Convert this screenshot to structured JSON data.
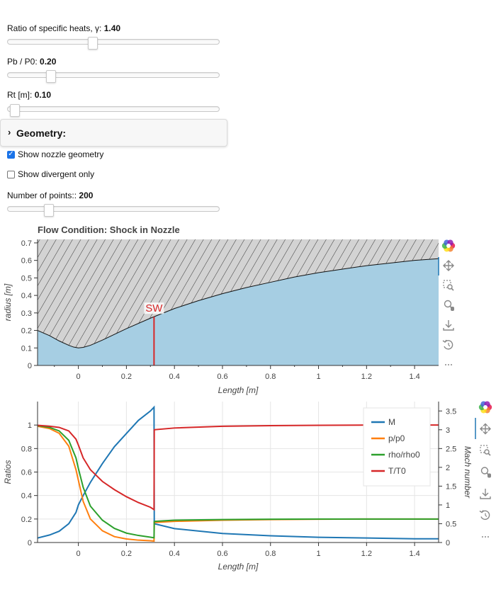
{
  "controls": {
    "gamma": {
      "label": "Ratio of specific heats, γ:",
      "value": "1.40",
      "fraction": 0.4
    },
    "pb": {
      "label": "Pb / P0:",
      "value": "0.20",
      "fraction": 0.2
    },
    "rt": {
      "label": "Rt [m]:",
      "value": "0.10",
      "fraction": 0.03
    },
    "geometry_panel": {
      "title": "Geometry:"
    },
    "show_geometry": {
      "label": "Show nozzle geometry",
      "checked": true
    },
    "show_divergent": {
      "label": "Show divergent only",
      "checked": false
    },
    "npoints": {
      "label": "Number of points::",
      "value": "200",
      "fraction": 0.19
    }
  },
  "toolbar": {
    "icons": [
      "bokeh-logo-icon",
      "pan-icon",
      "box-zoom-icon",
      "wheel-zoom-icon",
      "save-icon",
      "reset-icon",
      "more-icon"
    ]
  },
  "chart_data": [
    {
      "type": "area",
      "title": "Flow Condition: Shock in Nozzle",
      "xlabel": "Length [m]",
      "ylabel": "radius [m]",
      "xlim": [
        -0.17,
        1.5
      ],
      "ylim": [
        0,
        0.72
      ],
      "xticks": [
        "0",
        "0.2",
        "0.4",
        "0.6",
        "0.8",
        "1",
        "1.2",
        "1.4"
      ],
      "xtick_values": [
        0,
        0.2,
        0.4,
        0.6,
        0.8,
        1.0,
        1.2,
        1.4
      ],
      "yticks": [
        "0",
        "0.1",
        "0.2",
        "0.3",
        "0.4",
        "0.5",
        "0.6",
        "0.7"
      ],
      "ytick_values": [
        0,
        0.1,
        0.2,
        0.3,
        0.4,
        0.5,
        0.6,
        0.7
      ],
      "grid": false,
      "wall": {
        "x": [
          -0.17,
          -0.12,
          -0.08,
          -0.04,
          -0.02,
          0,
          0.02,
          0.05,
          0.1,
          0.2,
          0.3,
          0.4,
          0.5,
          0.6,
          0.7,
          0.8,
          0.9,
          1.0,
          1.1,
          1.2,
          1.3,
          1.4,
          1.5
        ],
        "y": [
          0.2,
          0.17,
          0.14,
          0.115,
          0.105,
          0.1,
          0.103,
          0.115,
          0.145,
          0.21,
          0.27,
          0.325,
          0.37,
          0.41,
          0.445,
          0.475,
          0.505,
          0.53,
          0.55,
          0.57,
          0.585,
          0.6,
          0.61
        ]
      },
      "colors": {
        "flow": "#a6cee3",
        "wall_fill": "#d3d3d3",
        "shock": "#d62728"
      },
      "shock": {
        "x": 0.315,
        "label": "SW"
      }
    },
    {
      "type": "line",
      "xlabel": "Length [m]",
      "ylabel": "Ratios",
      "y2label": "Mach number",
      "xlim": [
        -0.17,
        1.5
      ],
      "ylim": [
        0,
        1.2
      ],
      "y2lim": [
        0,
        3.75
      ],
      "xticks": [
        "0",
        "0.2",
        "0.4",
        "0.6",
        "0.8",
        "1",
        "1.2",
        "1.4"
      ],
      "xtick_values": [
        0,
        0.2,
        0.4,
        0.6,
        0.8,
        1.0,
        1.2,
        1.4
      ],
      "yticks": [
        "0",
        "0.2",
        "0.4",
        "0.6",
        "0.8",
        "1"
      ],
      "ytick_values": [
        0,
        0.2,
        0.4,
        0.6,
        0.8,
        1.0
      ],
      "y2ticks": [
        "0",
        "0.5",
        "1",
        "1.5",
        "2",
        "2.5",
        "3",
        "3.5"
      ],
      "y2tick_values": [
        0,
        0.5,
        1.0,
        1.5,
        2.0,
        2.5,
        3.0,
        3.5
      ],
      "grid": true,
      "legend_position": "top-right",
      "series": [
        {
          "name": "M",
          "color": "#1f77b4",
          "axis": "y2",
          "x": [
            -0.17,
            -0.12,
            -0.08,
            -0.04,
            -0.01,
            0,
            0.02,
            0.05,
            0.1,
            0.15,
            0.2,
            0.25,
            0.3,
            0.315,
            0.316,
            0.4,
            0.6,
            0.8,
            1.0,
            1.2,
            1.4,
            1.5
          ],
          "y": [
            0.12,
            0.2,
            0.3,
            0.5,
            0.8,
            1.0,
            1.25,
            1.6,
            2.1,
            2.55,
            2.9,
            3.25,
            3.5,
            3.6,
            0.5,
            0.37,
            0.24,
            0.18,
            0.14,
            0.12,
            0.1,
            0.1
          ]
        },
        {
          "name": "p/p0",
          "color": "#ff7f0e",
          "axis": "y",
          "x": [
            -0.17,
            -0.12,
            -0.08,
            -0.04,
            -0.01,
            0,
            0.02,
            0.05,
            0.1,
            0.15,
            0.2,
            0.25,
            0.3,
            0.315,
            0.316,
            0.4,
            0.6,
            0.8,
            1.0,
            1.2,
            1.4,
            1.5
          ],
          "y": [
            0.99,
            0.97,
            0.93,
            0.82,
            0.62,
            0.53,
            0.35,
            0.2,
            0.1,
            0.05,
            0.03,
            0.02,
            0.015,
            0.012,
            0.17,
            0.18,
            0.19,
            0.195,
            0.198,
            0.2,
            0.2,
            0.2
          ]
        },
        {
          "name": "rho/rho0",
          "color": "#2ca02c",
          "axis": "y",
          "x": [
            -0.17,
            -0.12,
            -0.08,
            -0.04,
            -0.01,
            0,
            0.02,
            0.05,
            0.1,
            0.15,
            0.2,
            0.25,
            0.3,
            0.315,
            0.316,
            0.4,
            0.6,
            0.8,
            1.0,
            1.2,
            1.4,
            1.5
          ],
          "y": [
            0.995,
            0.98,
            0.95,
            0.87,
            0.72,
            0.63,
            0.47,
            0.31,
            0.19,
            0.12,
            0.08,
            0.06,
            0.045,
            0.04,
            0.18,
            0.19,
            0.195,
            0.198,
            0.2,
            0.2,
            0.2,
            0.2
          ]
        },
        {
          "name": "T/T0",
          "color": "#d62728",
          "axis": "y",
          "x": [
            -0.17,
            -0.12,
            -0.08,
            -0.04,
            -0.01,
            0,
            0.02,
            0.05,
            0.1,
            0.15,
            0.2,
            0.25,
            0.3,
            0.315,
            0.316,
            0.4,
            0.6,
            0.8,
            1.0,
            1.2,
            1.4,
            1.5
          ],
          "y": [
            0.998,
            0.99,
            0.98,
            0.95,
            0.88,
            0.83,
            0.72,
            0.62,
            0.52,
            0.45,
            0.39,
            0.34,
            0.3,
            0.28,
            0.96,
            0.975,
            0.99,
            0.995,
            0.998,
            1.0,
            1.0,
            1.0
          ]
        }
      ]
    }
  ]
}
